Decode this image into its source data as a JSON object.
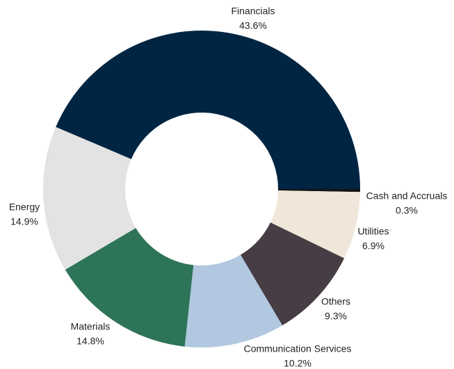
{
  "chart_data": {
    "type": "donut",
    "categories": [
      "Financials",
      "Cash and Accruals",
      "Utilities",
      "Others",
      "Communication Services",
      "Materials",
      "Energy"
    ],
    "values": [
      43.6,
      0.3,
      6.9,
      9.3,
      10.2,
      14.8,
      14.9
    ],
    "value_labels": [
      "43.6%",
      "0.3%",
      "6.9%",
      "9.3%",
      "10.2%",
      "14.8%",
      "14.9%"
    ],
    "colors": [
      "#002542",
      "#141414",
      "#f0e6da",
      "#473d44",
      "#b2c8e0",
      "#2e7459",
      "#e3e3e3"
    ]
  }
}
